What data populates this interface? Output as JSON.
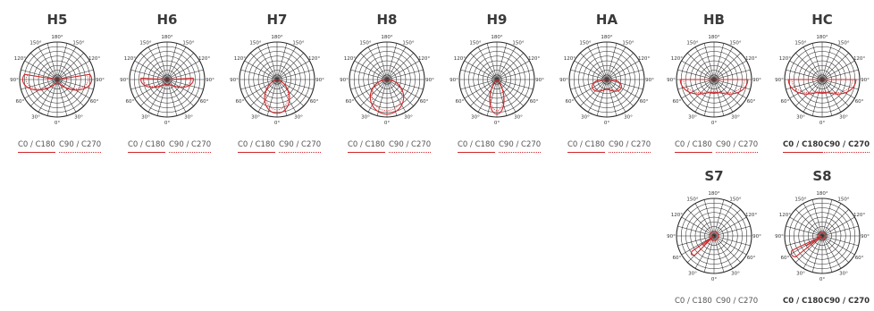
{
  "diagrams": [
    {
      "id": "H5",
      "title": "H5",
      "c0": "C0 / C180",
      "c90": "C90 / C270",
      "legend_underline": true,
      "bold_legend": false,
      "degrees": [
        "180°",
        "150°",
        "150°",
        "120°",
        "120°",
        "90°",
        "90°",
        "60°",
        "60°",
        "30°",
        "30°",
        "0°"
      ],
      "curve": "wide-side"
    },
    {
      "id": "H6",
      "title": "H6",
      "c0": "C0 / C180",
      "c90": "C90 / C270",
      "legend_underline": true,
      "bold_legend": false,
      "degrees": [
        "180°",
        "150°",
        "150°",
        "120°",
        "120°",
        "90°",
        "90°",
        "60°",
        "60°",
        "30°",
        "30°",
        "0°"
      ],
      "curve": "batwing"
    },
    {
      "id": "H7",
      "title": "H7",
      "c0": "C0 / C180",
      "c90": "C90 / C270",
      "legend_underline": true,
      "bold_legend": false,
      "degrees": [
        "180°",
        "150°",
        "150°",
        "120°",
        "120°",
        "90°",
        "90°",
        "60°",
        "60°",
        "30°",
        "30°",
        "0°"
      ],
      "curve": "narrow-down"
    },
    {
      "id": "H8",
      "title": "H8",
      "c0": "C0 / C180",
      "c90": "C90 / C270",
      "legend_underline": true,
      "bold_legend": false,
      "degrees": [
        "180°",
        "150°",
        "150°",
        "120°",
        "120°",
        "90°",
        "90°",
        "60°",
        "60°",
        "30°",
        "30°",
        "0°"
      ],
      "curve": "medium-down"
    },
    {
      "id": "H9",
      "title": "H9",
      "c0": "C0 / C180",
      "c90": "C90 / C270",
      "legend_underline": true,
      "bold_legend": false,
      "degrees": [
        "180°",
        "150°",
        "150°",
        "120°",
        "120°",
        "90°",
        "90°",
        "60°",
        "60°",
        "30°",
        "30°",
        "0°"
      ],
      "curve": "spot"
    },
    {
      "id": "HA",
      "title": "HA",
      "c0": "C0 / C180",
      "c90": "C90 / C270",
      "legend_underline": true,
      "bold_legend": false,
      "degrees": [
        "180°",
        "150°",
        "150°",
        "120°",
        "120°",
        "90°",
        "90°",
        "60°",
        "60°",
        "30°",
        "30°",
        "0°"
      ],
      "curve": "wide-down"
    },
    {
      "id": "HB",
      "title": "HB",
      "c0": "C0 / C180",
      "c90": "C90 / C270",
      "legend_underline": true,
      "bold_legend": false,
      "degrees": [
        "180°",
        "150°",
        "150°",
        "120°",
        "120°",
        "90°",
        "90°",
        "60°",
        "60°",
        "30°",
        "30°",
        "0°"
      ],
      "curve": "wide-batwing"
    },
    {
      "id": "HC",
      "title": "HC",
      "c0": "C0 / C180",
      "c90": "C90 / C270",
      "legend_underline": true,
      "bold_legend": true,
      "degrees": [
        "180°",
        "150°",
        "150°",
        "120°",
        "120°",
        "90°",
        "90°",
        "60°",
        "60°",
        "30°",
        "30°",
        "0°"
      ],
      "curve": "wide-batwing"
    },
    {
      "id": "S7",
      "title": "S7",
      "c0": "C0 / C180",
      "c90": "C90 / C270",
      "legend_underline": false,
      "bold_legend": false,
      "degrees": [
        "180°",
        "150°",
        "150°",
        "120°",
        "120°",
        "90°",
        "90°",
        "60°",
        "60°",
        "30°",
        "30°",
        "0°"
      ],
      "curve": "asym-small"
    },
    {
      "id": "S8",
      "title": "S8",
      "c0": "C0 / C180",
      "c90": "C90 / C270",
      "legend_underline": false,
      "bold_legend": true,
      "degrees": [
        "180°",
        "150°",
        "150°",
        "120°",
        "120°",
        "90°",
        "90°",
        "60°",
        "60°",
        "30°",
        "30°",
        "0°"
      ],
      "curve": "asym-large"
    }
  ],
  "colors": {
    "curve": "#d0272b",
    "grid": "#2a2a2a",
    "text": "#3a3a3a"
  }
}
